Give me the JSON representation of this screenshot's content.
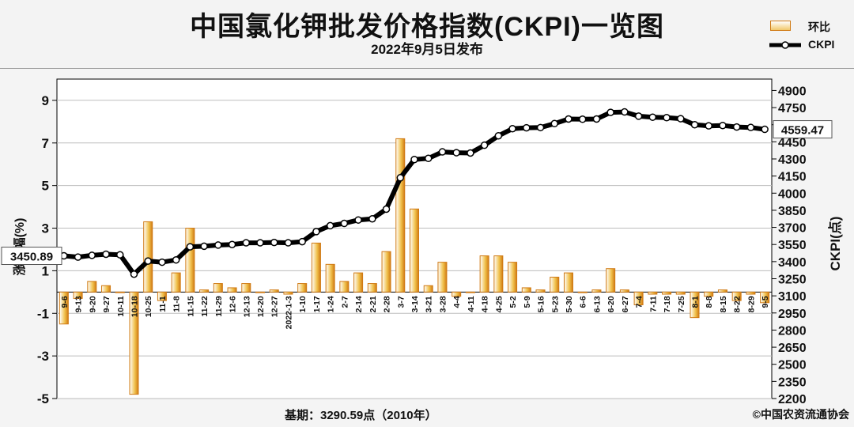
{
  "header": {
    "title": "中国氯化钾批发价格指数(CKPI)一览图",
    "subtitle": "2022年9月5日发布"
  },
  "legend": {
    "bar_label": "环比",
    "line_label": "CKPI"
  },
  "footer": {
    "base_text": "基期：3290.59点（2010年）",
    "copyright": "©中国农资流通协会"
  },
  "colors": {
    "bar_fill_top": "#ffffff",
    "bar_fill_bottom": "#f0c04a",
    "bar_stroke": "#d07a14",
    "line": "#000000",
    "marker": "#ffffff",
    "plot_bg": "#ffffff"
  },
  "chart_data": {
    "type": "bar+line",
    "title": "中国氯化钾批发价格指数(CKPI)一览图",
    "subtitle": "2022年9月5日发布",
    "ylabel_left": "涨跌幅(%)",
    "ylabel_right": "CKPI(点)",
    "ylim_left": [
      -5,
      10
    ],
    "yticks_left": [
      -5,
      -3,
      -1,
      1,
      3,
      5,
      7,
      9
    ],
    "ylim_right": [
      2200,
      5000
    ],
    "yticks_right": [
      2200,
      2350,
      2500,
      2650,
      2800,
      2950,
      3100,
      3250,
      3400,
      3550,
      3700,
      3850,
      4000,
      4150,
      4300,
      4450,
      4600,
      4750,
      4900
    ],
    "grid": true,
    "x": [
      "9-6",
      "9-13",
      "9-20",
      "9-27",
      "10-11",
      "10-18",
      "10-25",
      "11-1",
      "11-8",
      "11-15",
      "11-22",
      "11-29",
      "12-6",
      "12-13",
      "12-20",
      "12-27",
      "2022-1-3",
      "1-10",
      "1-17",
      "1-24",
      "2-7",
      "2-14",
      "2-21",
      "2-28",
      "3-7",
      "3-14",
      "3-21",
      "3-28",
      "4-4",
      "4-11",
      "4-18",
      "4-25",
      "5-2",
      "5-9",
      "5-16",
      "5-23",
      "5-30",
      "6-6",
      "6-13",
      "6-20",
      "6-27",
      "7-4",
      "7-11",
      "7-18",
      "7-25",
      "8-1",
      "8-8",
      "8-15",
      "8-22",
      "8-29",
      "9-5"
    ],
    "series": [
      {
        "name": "环比",
        "type": "bar",
        "axis": "left",
        "values": [
          -1.5,
          -0.3,
          0.5,
          0.3,
          0.0,
          -4.8,
          3.3,
          -0.4,
          0.9,
          3.0,
          0.1,
          0.4,
          0.2,
          0.4,
          0.0,
          0.1,
          -0.1,
          0.4,
          2.3,
          1.3,
          0.5,
          0.9,
          0.4,
          1.9,
          7.2,
          3.9,
          0.3,
          1.4,
          -0.2,
          0.0,
          1.7,
          1.7,
          1.4,
          0.2,
          0.1,
          0.7,
          0.9,
          0.0,
          0.1,
          1.1,
          0.1,
          -0.6,
          -0.1,
          -0.1,
          -0.1,
          -1.2,
          -0.2,
          0.1,
          -0.4,
          -0.1,
          -0.5
        ]
      },
      {
        "name": "CKPI",
        "type": "line",
        "axis": "right",
        "values": [
          3450.89,
          3440,
          3455,
          3465,
          3460,
          3290,
          3405,
          3395,
          3415,
          3530,
          3535,
          3545,
          3550,
          3565,
          3565,
          3568,
          3565,
          3575,
          3663,
          3715,
          3735,
          3765,
          3775,
          3860,
          4135,
          4295,
          4305,
          4362,
          4355,
          4352,
          4420,
          4503,
          4565,
          4573,
          4575,
          4610,
          4650,
          4648,
          4650,
          4708,
          4712,
          4675,
          4666,
          4662,
          4653,
          4600,
          4590,
          4593,
          4580,
          4576,
          4559.47
        ]
      }
    ],
    "annotations": [
      {
        "text": "3450.89",
        "target": "CKPI first value"
      },
      {
        "text": "4559.47",
        "target": "CKPI last value"
      }
    ]
  }
}
